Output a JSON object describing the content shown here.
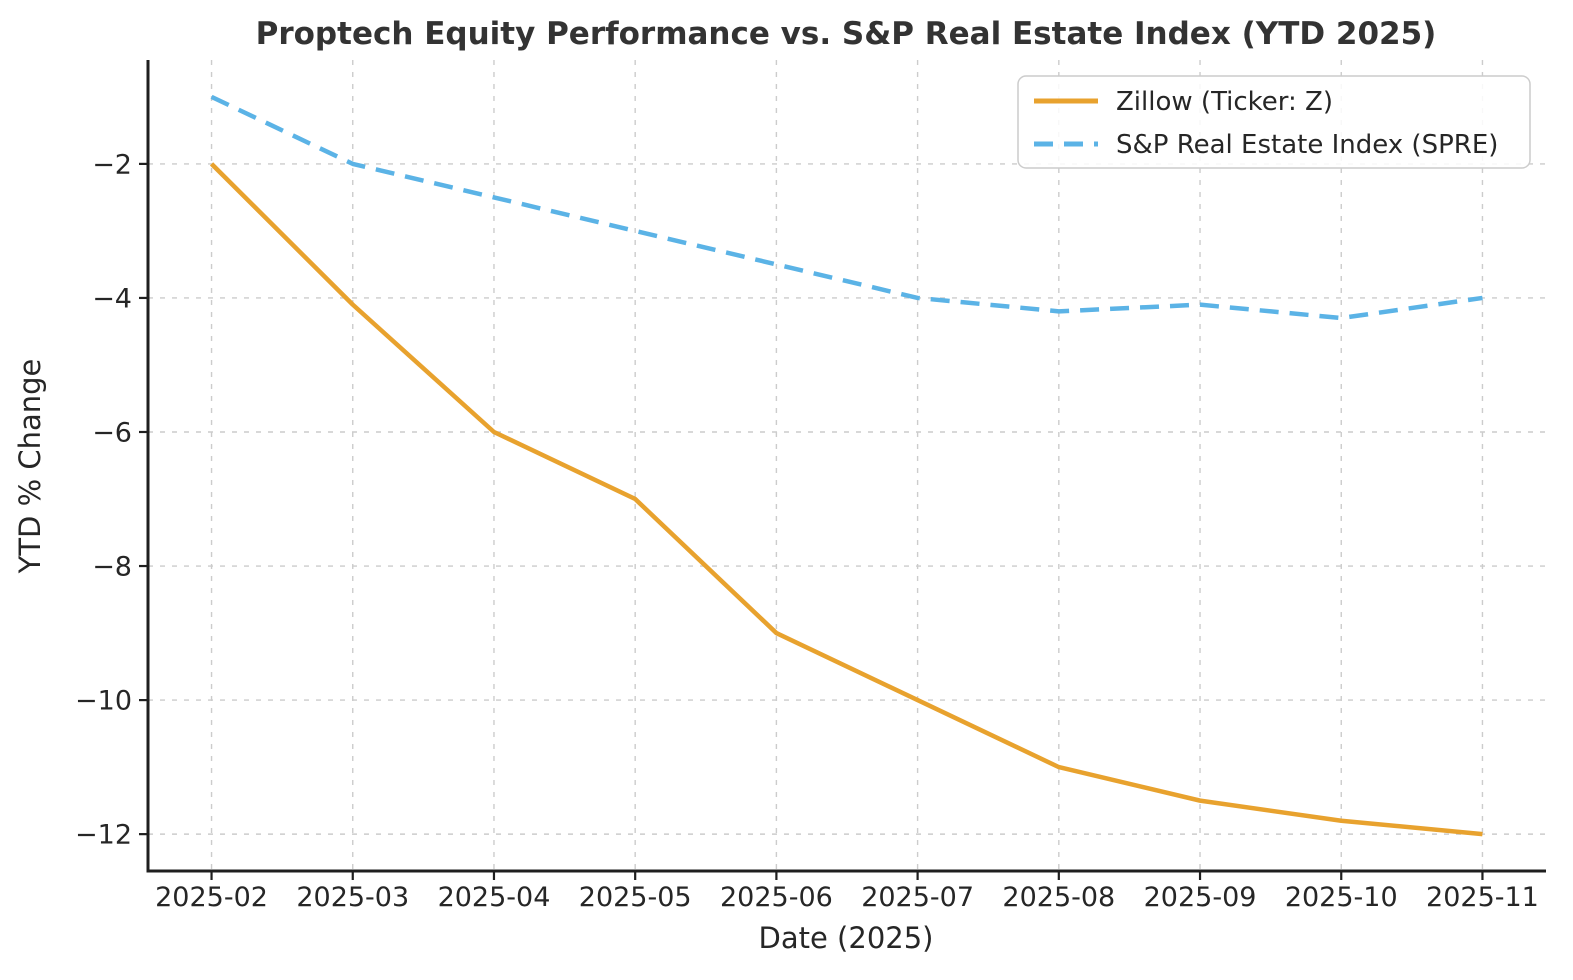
{
  "title": "Proptech Equity Performance vs. S&P Real Estate Index (YTD 2025)",
  "chart_data": {
    "type": "line",
    "title": "Proptech Equity Performance vs. S&P Real Estate Index (YTD 2025)",
    "xlabel": "Date (2025)",
    "ylabel": "YTD % Change",
    "categories": [
      "2025-02",
      "2025-03",
      "2025-04",
      "2025-05",
      "2025-06",
      "2025-07",
      "2025-08",
      "2025-09",
      "2025-10",
      "2025-11"
    ],
    "series": [
      {
        "name": "Zillow (Ticker: Z)",
        "color": "#E8A22E",
        "line_style": "solid",
        "values": [
          -2.0,
          -4.1,
          -6.0,
          -7.0,
          -9.0,
          -10.0,
          -11.0,
          -11.5,
          -11.8,
          -12.0
        ]
      },
      {
        "name": "S&P Real Estate Index (SPRE)",
        "color": "#5BB3E6",
        "line_style": "dashed",
        "values": [
          -1.0,
          -2.0,
          -2.5,
          -3.0,
          -3.5,
          -4.0,
          -4.2,
          -4.1,
          -4.3,
          -4.0
        ]
      }
    ],
    "yticks": [
      {
        "value": -2,
        "label": "−2"
      },
      {
        "value": -4,
        "label": "−4"
      },
      {
        "value": -6,
        "label": "−6"
      },
      {
        "value": -8,
        "label": "−8"
      },
      {
        "value": -10,
        "label": "−10"
      },
      {
        "value": -12,
        "label": "−12"
      }
    ],
    "ylim": [
      -12.55,
      -0.45
    ],
    "xlim_index": [
      -0.45,
      9.45
    ],
    "grid": true,
    "grid_style": "dashed",
    "legend_position": "upper right"
  },
  "colors": {
    "background": "#ffffff",
    "spine": "#1f1f1f",
    "grid": "#cccccc",
    "title": "#333333",
    "text": "#262626",
    "legend_border": "#cccccc",
    "legend_background": "rgba(255,255,255,0.85)"
  }
}
